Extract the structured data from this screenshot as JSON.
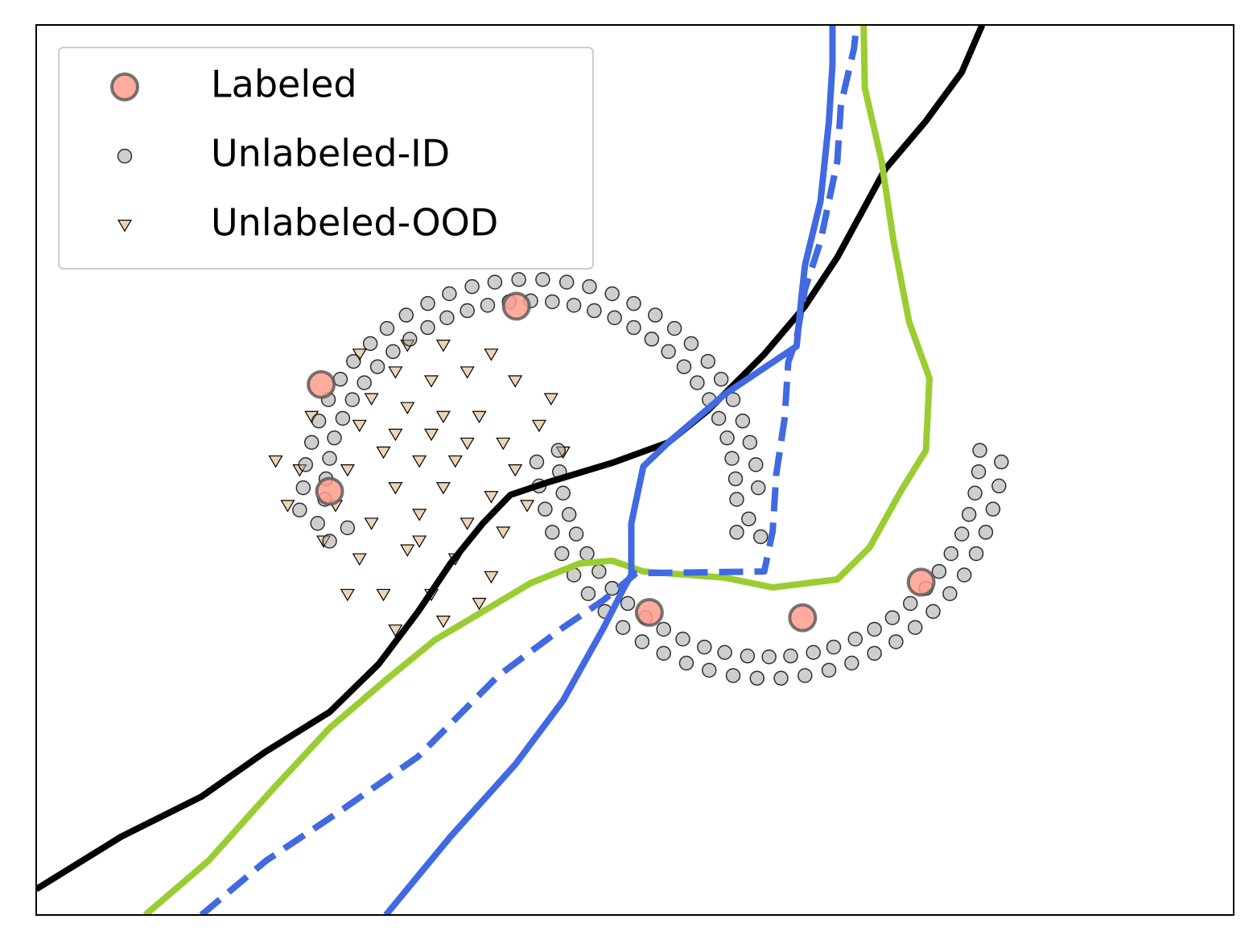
{
  "chart_data": {
    "type": "scatter",
    "xlim": [
      0,
      100
    ],
    "ylim": [
      0,
      100
    ],
    "legend": "upper left",
    "series": [
      {
        "name": "Labeled",
        "color": "#ff9e8c",
        "marker": "o",
        "x": [
          40.1,
          23.8,
          24.5,
          51.2,
          64.0,
          73.9
        ],
        "y": [
          68.4,
          59.6,
          47.6,
          34.0,
          33.4,
          37.4
        ]
      },
      {
        "name": "Unlabeled-ID",
        "color": "#9e9e9e",
        "marker": "o",
        "x": [
          58.5,
          58.4,
          58.1,
          57.7,
          57.0,
          56.2,
          55.2,
          54.1,
          52.8,
          51.4,
          49.9,
          48.3,
          46.6,
          44.9,
          43.1,
          41.3,
          39.5,
          37.7,
          36.0,
          34.3,
          32.7,
          31.2,
          29.8,
          28.5,
          27.4,
          26.4,
          25.6,
          24.9,
          24.5,
          24.2,
          24.1,
          60.3,
          60.1,
          59.6,
          59.0,
          58.2,
          57.2,
          56.1,
          54.7,
          53.3,
          51.7,
          49.9,
          48.1,
          46.2,
          44.3,
          42.3,
          40.3,
          38.3,
          36.4,
          34.5,
          32.7,
          30.9,
          29.3,
          27.9,
          26.5,
          25.4,
          24.4,
          23.6,
          23.0,
          22.5,
          22.3,
          23.5,
          24.5,
          22.0,
          26.0,
          59.5,
          60.5,
          58.5,
          78.8,
          78.7,
          78.4,
          77.9,
          77.3,
          76.4,
          75.4,
          74.3,
          73.0,
          71.5,
          70.0,
          68.4,
          66.6,
          64.9,
          63.0,
          61.2,
          59.4,
          57.5,
          55.8,
          54.0,
          52.4,
          50.9,
          49.4,
          48.1,
          47.0,
          46.0,
          45.1,
          44.5,
          44.0,
          43.7,
          43.6,
          80.6,
          80.4,
          79.9,
          79.3,
          78.5,
          77.5,
          76.3,
          74.9,
          73.4,
          71.8,
          70.0,
          68.1,
          66.2,
          64.2,
          62.2,
          60.2,
          58.2,
          56.2,
          54.3,
          52.4,
          50.6,
          49.0,
          47.5,
          46.1,
          44.9,
          43.9,
          43.1,
          42.5,
          42.0,
          41.8
        ],
        "y": [
          46.7,
          49.0,
          51.3,
          53.6,
          55.8,
          57.9,
          59.8,
          61.6,
          63.3,
          64.7,
          66.0,
          67.1,
          67.9,
          68.5,
          68.9,
          69.0,
          68.9,
          68.5,
          67.9,
          67.1,
          66.0,
          64.7,
          63.3,
          61.6,
          59.8,
          57.9,
          55.8,
          53.6,
          51.3,
          49.0,
          46.7,
          48.0,
          50.6,
          53.1,
          55.5,
          57.9,
          60.2,
          62.2,
          64.2,
          65.9,
          67.4,
          68.7,
          69.8,
          70.6,
          71.1,
          71.4,
          71.4,
          71.1,
          70.6,
          69.8,
          68.7,
          67.4,
          65.9,
          64.2,
          62.2,
          60.2,
          57.9,
          55.5,
          53.1,
          50.6,
          48.0,
          44.0,
          42.0,
          45.5,
          43.5,
          44.5,
          42.5,
          43.0,
          52.2,
          49.8,
          47.4,
          45.0,
          42.8,
          40.6,
          38.6,
          36.7,
          35.0,
          33.4,
          32.1,
          31.0,
          30.1,
          29.5,
          29.1,
          29.0,
          29.1,
          29.5,
          30.1,
          31.0,
          32.1,
          33.4,
          35.0,
          36.7,
          38.6,
          40.6,
          42.8,
          45.0,
          47.4,
          49.8,
          52.2,
          50.9,
          48.2,
          45.6,
          43.0,
          40.6,
          38.2,
          36.1,
          34.1,
          32.3,
          30.7,
          29.4,
          28.3,
          27.5,
          26.9,
          26.6,
          26.6,
          26.9,
          27.5,
          28.3,
          29.4,
          30.7,
          32.3,
          34.1,
          36.1,
          38.2,
          40.6,
          43.0,
          45.6,
          48.2,
          50.9
        ]
      },
      {
        "name": "Unlabeled-OOD",
        "color": "#deb887",
        "marker": "v",
        "x": [
          27,
          29,
          31,
          33,
          35,
          37,
          39,
          30,
          32,
          34,
          36,
          38,
          28,
          26,
          40,
          41,
          33,
          36,
          30,
          25,
          27,
          31,
          35,
          29,
          33,
          38,
          24,
          22,
          20,
          23,
          42,
          43,
          40,
          38,
          34,
          31,
          27,
          44,
          21,
          26,
          30,
          34,
          39,
          37,
          32,
          34,
          28,
          36,
          30,
          32
        ],
        "y": [
          55,
          52,
          57,
          54,
          51,
          56,
          53,
          48,
          45,
          48,
          44,
          47,
          44,
          50,
          50,
          46,
          60,
          61,
          61,
          46,
          40,
          41,
          40,
          36,
          36,
          38,
          42,
          50,
          51,
          56,
          55,
          58,
          60,
          63,
          64,
          64,
          63,
          52,
          46,
          36,
          32,
          33,
          43,
          35,
          51,
          56,
          58,
          53,
          54,
          42
        ]
      }
    ],
    "lines": [
      {
        "color": "#000000",
        "dashed": false,
        "x": [
          0,
          7.1,
          13.8,
          19.1,
          24.5,
          28.6,
          31.9,
          34.6,
          37.3,
          39.6,
          42.7,
          48.1,
          52.8,
          56.1,
          60.8,
          64.2,
          66.9,
          70.9,
          74.3,
          77.3,
          79.0
        ],
        "y": [
          2.9,
          8.8,
          13.3,
          18.3,
          22.8,
          28.2,
          34.1,
          39.5,
          44.0,
          47.2,
          48.6,
          50.8,
          53.1,
          56.7,
          63.0,
          68.4,
          73.9,
          83.8,
          89.2,
          94.7,
          100
        ]
      },
      {
        "color": "#9acd32",
        "dashed": false,
        "x": [
          9.1,
          14.4,
          19.8,
          24.5,
          29.2,
          33.3,
          37.3,
          41.3,
          45.4,
          48.1,
          50.7,
          57.5,
          61.5,
          66.9,
          69.6,
          72.2,
          74.3,
          74.6,
          72.9,
          71.6,
          70.6,
          69.2,
          69.1
        ],
        "y": [
          0,
          6.1,
          14.2,
          21.0,
          26.4,
          30.9,
          34.1,
          37.3,
          39.5,
          39.8,
          38.6,
          37.9,
          36.8,
          37.7,
          41.3,
          47.6,
          52.2,
          60.3,
          66.6,
          75.7,
          84.7,
          92.9,
          100
        ]
      },
      {
        "color": "#4169e1",
        "dashed": false,
        "x": [
          29.2,
          34.6,
          40.0,
          44.0,
          47.4,
          49.1,
          49.7,
          49.7,
          50.7,
          52.8,
          57.5,
          61.5,
          63.5,
          63.9,
          64.2,
          65.5,
          66.2,
          66.5,
          66.5
        ],
        "y": [
          0,
          8.8,
          16.9,
          24.1,
          32.3,
          36.8,
          38.2,
          44.0,
          50.4,
          53.1,
          58.5,
          62.1,
          63.9,
          69.3,
          73.0,
          80.2,
          89.2,
          95.6,
          100
        ]
      },
      {
        "color": "#4169e1",
        "dashed": true,
        "x": [
          13.8,
          19.2,
          25.2,
          31.9,
          38.6,
          44.0,
          47.4,
          50.1,
          60.8,
          61.5,
          61.8,
          62.5,
          62.8,
          63.5,
          64.2,
          65.5,
          66.9,
          67.2,
          68.3,
          68.5
        ],
        "y": [
          0,
          6.1,
          11.5,
          17.8,
          26.9,
          32.3,
          35.4,
          38.4,
          38.6,
          43.1,
          49.5,
          55.8,
          62.1,
          64.8,
          70.3,
          75.7,
          84.7,
          91.0,
          97.4,
          100
        ]
      }
    ]
  }
}
